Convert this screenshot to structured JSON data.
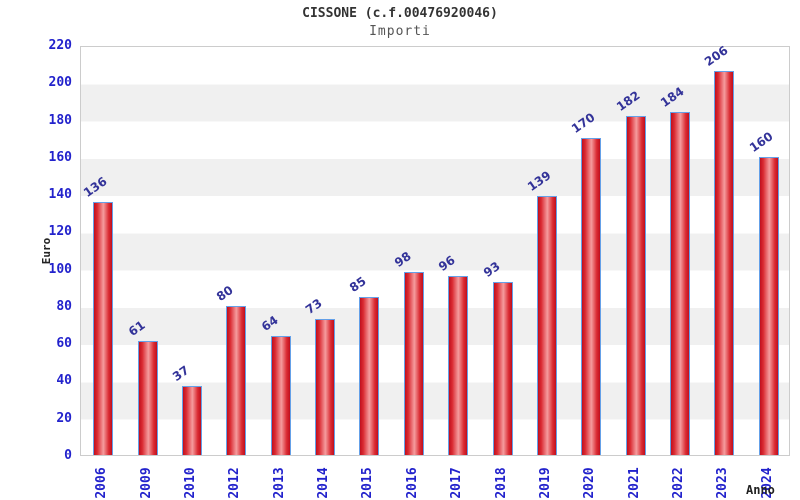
{
  "title": "CISSONE (c.f.00476920046)",
  "subtitle": "Importi",
  "chart_data": {
    "type": "bar",
    "title": "CISSONE (c.f.00476920046)",
    "subtitle": "Importi",
    "xlabel": "Anno",
    "ylabel": "Euro",
    "categories": [
      "2006",
      "2009",
      "2010",
      "2012",
      "2013",
      "2014",
      "2015",
      "2016",
      "2017",
      "2018",
      "2019",
      "2020",
      "2021",
      "2022",
      "2023",
      "2024"
    ],
    "values": [
      136,
      61,
      37,
      80,
      64,
      73,
      85,
      98,
      96,
      93,
      139,
      170,
      182,
      184,
      206,
      160
    ],
    "ylim": [
      0,
      220
    ],
    "yticks": [
      0,
      20,
      40,
      60,
      80,
      100,
      120,
      140,
      160,
      180,
      200,
      220
    ],
    "grid": "alternating-horizontal-bands",
    "band_unit": 20,
    "legend": "none",
    "value_labels": "above-bars-rotated"
  },
  "colors": {
    "bar_edge": "#c00f1e",
    "bar_mid": "#f59c9e",
    "bar_border": "#64a0e8",
    "tick_label_blue": "#2222cc",
    "value_label_blue": "#333399",
    "band_gray": "#f0f0f0",
    "plot_border": "#cccccc",
    "title_color": "#333333",
    "subtitle_color": "#555555",
    "axis_title_color": "#222222"
  }
}
